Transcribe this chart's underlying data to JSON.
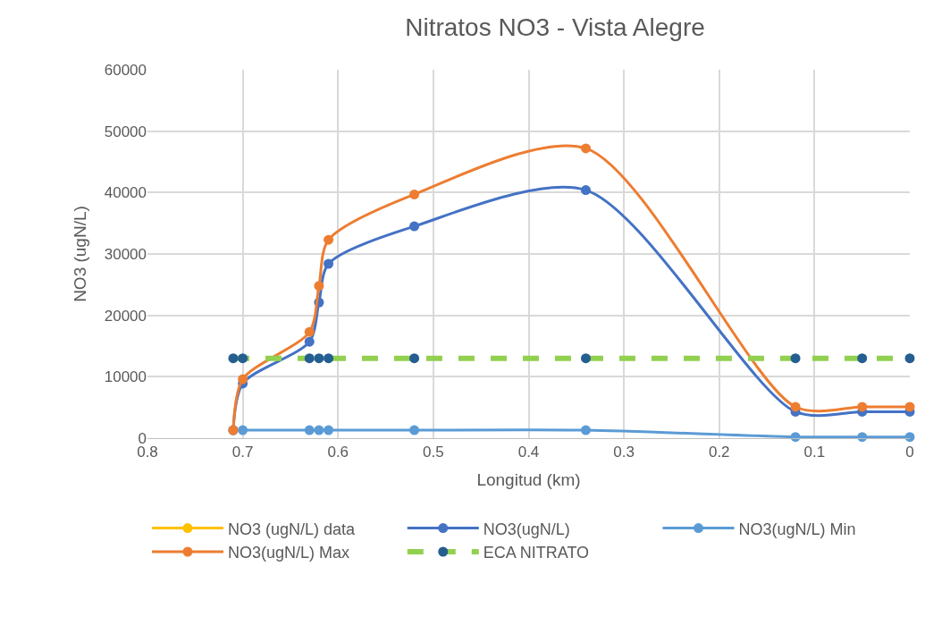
{
  "chart_data": {
    "type": "line",
    "title": "Nitratos NO3 - Vista Alegre",
    "xlabel": "Longitud (km)",
    "ylabel": "NO3 (ugN/L)",
    "x": [
      0.71,
      0.7,
      0.63,
      0.62,
      0.61,
      0.52,
      0.34,
      0.12,
      0.05,
      0
    ],
    "series": [
      {
        "name": "NO3 (ugN/L) data",
        "color": "#ffc000",
        "values": [
          null,
          null,
          null,
          null,
          null,
          null,
          null,
          null,
          null,
          null
        ]
      },
      {
        "name": "NO3(ugN/L)",
        "color": "#4472c4",
        "values": [
          1300,
          8900,
          15700,
          22100,
          28400,
          34500,
          40400,
          4300,
          4300,
          4300
        ]
      },
      {
        "name": "NO3(ugN/L) Min",
        "color": "#5b9bd5",
        "values": [
          1300,
          1300,
          1300,
          1300,
          1300,
          1300,
          1300,
          200,
          200,
          200
        ]
      },
      {
        "name": "NO3(ugN/L) Max",
        "color": "#ed7d31",
        "values": [
          1300,
          9600,
          17300,
          24800,
          32300,
          39700,
          47200,
          5100,
          5100,
          5100
        ]
      },
      {
        "name": "ECA NITRATO",
        "color": "#92d050",
        "colors": [
          "#255e91",
          "#255e91",
          "#255e91",
          "#255e91",
          "#255e91",
          "#255e91",
          "#255e91",
          "#255e91",
          "#255e91",
          "#255e91"
        ],
        "line_style": "dashed",
        "values": [
          13000,
          13000,
          13000,
          13000,
          13000,
          13000,
          13000,
          13000,
          13000,
          13000
        ]
      }
    ],
    "xlim": [
      0.8,
      0
    ],
    "xticks": [
      0.8,
      0.7,
      0.6,
      0.5,
      0.4,
      0.3,
      0.2,
      0.1,
      0
    ],
    "ylim": [
      0,
      60000
    ],
    "yticks": [
      0,
      10000,
      20000,
      30000,
      40000,
      50000,
      60000
    ],
    "grid": true,
    "legend": "bottom",
    "marker": "circle",
    "line_style": "solid"
  }
}
